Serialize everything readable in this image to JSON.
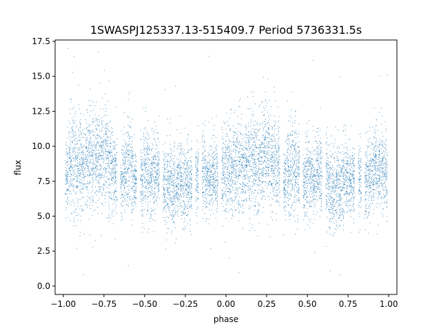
{
  "chart_data": {
    "type": "scatter",
    "title": "1SWASPJ125337.13-515409.7 Period 5736331.5s",
    "xlabel": "phase",
    "ylabel": "flux",
    "xlim": [
      -1.05,
      1.05
    ],
    "ylim": [
      -0.6,
      17.6
    ],
    "xticks": [
      -1.0,
      -0.75,
      -0.5,
      -0.25,
      0.0,
      0.25,
      0.5,
      0.75,
      1.0
    ],
    "xtick_labels": [
      "−1.00",
      "−0.75",
      "−0.50",
      "−0.25",
      "0.00",
      "0.25",
      "0.50",
      "0.75",
      "1.00"
    ],
    "yticks": [
      0.0,
      2.5,
      5.0,
      7.5,
      10.0,
      12.5,
      15.0,
      17.5
    ],
    "ytick_labels": [
      "0.0",
      "2.5",
      "5.0",
      "7.5",
      "10.0",
      "12.5",
      "15.0",
      "17.5"
    ],
    "grid": false,
    "marker_color": "#1f77b4",
    "series": [
      {
        "x": [
          -0.98,
          -0.96,
          -0.94,
          -0.92,
          -0.9,
          -0.88,
          -0.86,
          -0.84,
          -0.82,
          -0.8,
          -0.78,
          -0.76,
          -0.74,
          -0.72,
          -0.7,
          -0.68,
          -0.64,
          -0.62,
          -0.6,
          -0.58,
          -0.56,
          -0.52,
          -0.5,
          -0.48,
          -0.46,
          -0.44,
          -0.42,
          -0.38,
          -0.36,
          -0.34,
          -0.32,
          -0.3,
          -0.28,
          -0.26,
          -0.24,
          -0.22,
          -0.18,
          -0.14,
          -0.12,
          -0.1,
          -0.08,
          -0.06,
          -0.02,
          0.0,
          0.02,
          0.04,
          0.06,
          0.08,
          0.1,
          0.12,
          0.14,
          0.16,
          0.18,
          0.2,
          0.22,
          0.24,
          0.26,
          0.28,
          0.3,
          0.32,
          0.36,
          0.38,
          0.4,
          0.42,
          0.44,
          0.48,
          0.5,
          0.52,
          0.54,
          0.56,
          0.58,
          0.62,
          0.64,
          0.66,
          0.68,
          0.7,
          0.72,
          0.74,
          0.76,
          0.78,
          0.82,
          0.86,
          0.88,
          0.9,
          0.92,
          0.94,
          0.96,
          0.98
        ],
        "y": [
          8.1,
          8.6,
          9.2,
          8.4,
          9.0,
          8.3,
          8.8,
          9.4,
          8.7,
          9.1,
          8.9,
          9.3,
          9.6,
          9.0,
          8.5,
          7.8,
          7.6,
          8.4,
          9.1,
          8.2,
          7.5,
          7.3,
          8.6,
          8.1,
          7.7,
          8.3,
          7.9,
          7.0,
          7.2,
          7.6,
          6.9,
          7.4,
          7.8,
          7.1,
          7.5,
          7.2,
          7.9,
          8.4,
          7.6,
          7.8,
          8.1,
          7.7,
          8.0,
          8.6,
          8.9,
          8.4,
          9.0,
          8.6,
          8.2,
          8.8,
          8.5,
          9.2,
          8.8,
          8.6,
          9.0,
          9.4,
          9.1,
          8.8,
          9.3,
          8.5,
          7.7,
          8.2,
          8.8,
          8.4,
          7.9,
          7.4,
          8.2,
          7.8,
          7.5,
          8.4,
          8.0,
          7.6,
          7.2,
          7.0,
          7.4,
          7.1,
          7.6,
          7.9,
          7.3,
          7.6,
          7.5,
          7.7,
          7.9,
          8.1,
          8.4,
          8.0,
          8.6,
          8.2
        ],
        "spread": [
          1.4,
          1.6,
          1.9,
          1.7,
          1.8,
          1.6,
          1.5,
          1.7,
          1.9,
          1.8,
          1.6,
          1.7,
          1.8,
          1.7,
          1.5,
          1.4,
          1.3,
          1.5,
          1.7,
          1.5,
          1.3,
          1.3,
          1.6,
          1.5,
          1.4,
          1.5,
          1.3,
          1.4,
          1.5,
          1.6,
          1.5,
          1.4,
          1.3,
          1.4,
          1.3,
          1.2,
          1.3,
          1.4,
          1.3,
          1.3,
          1.4,
          1.3,
          1.4,
          1.6,
          1.7,
          1.6,
          1.8,
          1.7,
          1.6,
          1.8,
          1.7,
          1.8,
          1.7,
          1.7,
          1.8,
          1.9,
          1.8,
          1.7,
          1.8,
          1.6,
          1.4,
          1.5,
          1.7,
          1.6,
          1.4,
          1.3,
          1.5,
          1.4,
          1.3,
          1.5,
          1.4,
          1.4,
          1.5,
          1.6,
          1.5,
          1.4,
          1.4,
          1.4,
          1.3,
          1.3,
          1.3,
          1.3,
          1.4,
          1.4,
          1.5,
          1.4,
          1.5,
          1.4
        ]
      }
    ]
  }
}
